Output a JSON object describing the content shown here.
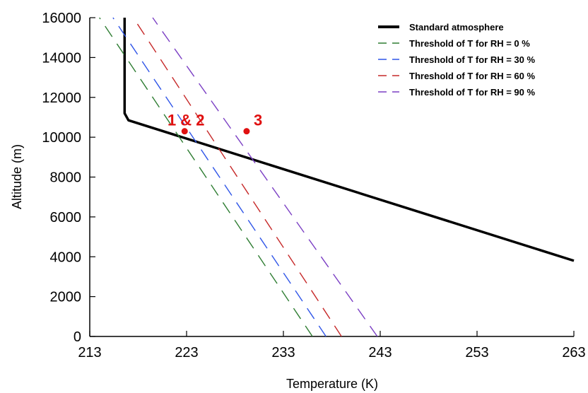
{
  "chart_data": {
    "type": "line",
    "title": "",
    "xlabel": "Temperature (K)",
    "ylabel": "Altitude (m)",
    "xlim": [
      213,
      263
    ],
    "ylim": [
      0,
      16000
    ],
    "xticks": [
      213,
      223,
      233,
      243,
      253,
      263
    ],
    "yticks": [
      0,
      2000,
      4000,
      6000,
      8000,
      10000,
      12000,
      14000,
      16000
    ],
    "grid": false,
    "legend_position": "top-right",
    "series": [
      {
        "name": "Standard atmosphere",
        "style": "solid",
        "color": "#000000",
        "x": [
          263.0,
          217.0,
          216.6,
          216.6
        ],
        "y": [
          3800,
          10850,
          11200,
          16000
        ]
      },
      {
        "name": "Threshold of T for RH = 0 %",
        "style": "dashed",
        "color": "#2e7d32",
        "x": [
          236.0,
          214.0
        ],
        "y": [
          0,
          16000
        ]
      },
      {
        "name": "Threshold of T for RH = 30 %",
        "style": "dashed",
        "color": "#2f55e8",
        "x": [
          237.4,
          215.4
        ],
        "y": [
          0,
          16000
        ]
      },
      {
        "name": "Threshold of T for RH = 60 %",
        "style": "dashed",
        "color": "#c62828",
        "x": [
          239.0,
          217.5
        ],
        "y": [
          0,
          16000
        ]
      },
      {
        "name": "Threshold of T for RH = 90 %",
        "style": "dashed",
        "color": "#7b3fc4",
        "x": [
          242.7,
          219.5
        ],
        "y": [
          0,
          16000
        ]
      }
    ],
    "annotations": [
      {
        "text": "1 & 2",
        "x": 222.8,
        "y": 10300,
        "color": "#e01010"
      },
      {
        "text": "3",
        "x": 229.2,
        "y": 10300,
        "color": "#e01010"
      }
    ]
  }
}
